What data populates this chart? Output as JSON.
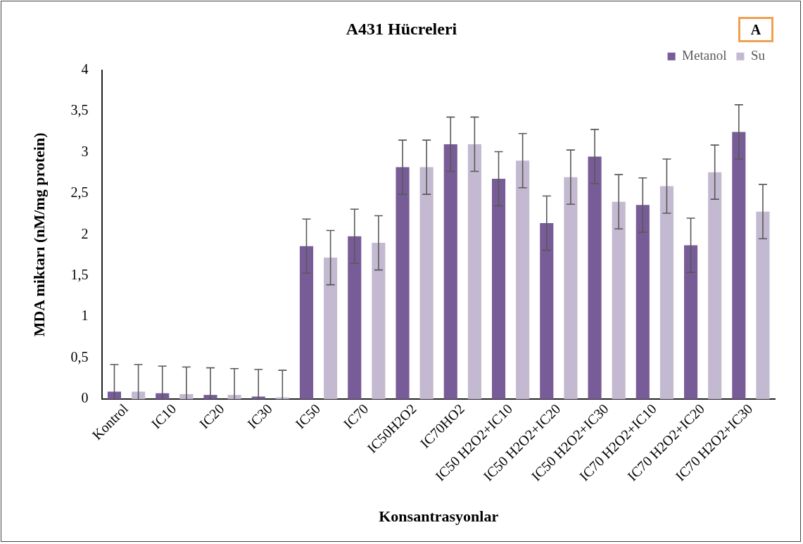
{
  "chart_data": {
    "type": "bar",
    "title": "A431 Hücreleri",
    "xlabel": "Konsantrasyonlar",
    "ylabel": "MDA miktarı (nM/mg protein)",
    "categories": [
      "Kontrol",
      "IC10",
      "IC20",
      "IC30",
      "IC50",
      "IC70",
      "IC50H2O2",
      "IC70HO2",
      "IC50 H2O2+IC10",
      "IC50 H2O2+IC20",
      "IC50 H2O2+IC30",
      "IC70 H2O2+IC10",
      "IC70 H2O2+IC20",
      "IC70 H2O2+IC30"
    ],
    "series": [
      {
        "name": "Metanol",
        "color": "#775c98",
        "values": [
          0.09,
          0.07,
          0.05,
          0.03,
          1.86,
          1.98,
          2.82,
          3.1,
          2.68,
          2.14,
          2.95,
          2.36,
          1.87,
          3.25
        ],
        "errors": [
          [
            0,
            0.42
          ],
          [
            0,
            0.4
          ],
          [
            0,
            0.38
          ],
          [
            0,
            0.36
          ],
          0.33,
          0.33,
          0.33,
          0.33,
          0.33,
          0.33,
          0.33,
          0.33,
          0.33,
          0.33
        ]
      },
      {
        "name": "Su",
        "color": "#c3b9d1",
        "values": [
          0.09,
          0.06,
          0.05,
          0.02,
          1.72,
          1.9,
          2.82,
          3.1,
          2.9,
          2.7,
          2.4,
          2.59,
          2.76,
          2.28
        ],
        "errors": [
          [
            0,
            0.42
          ],
          [
            0,
            0.39
          ],
          [
            0,
            0.37
          ],
          [
            0,
            0.35
          ],
          0.33,
          0.33,
          0.33,
          0.33,
          0.33,
          0.33,
          0.33,
          0.33,
          0.33,
          0.33
        ]
      }
    ],
    "ylim": [
      0,
      4
    ],
    "yticks": [
      0,
      {
        "value": 0.5,
        "label": "0,5"
      },
      1,
      {
        "value": 1.5,
        "label": "1,5"
      },
      2,
      {
        "value": 2.5,
        "label": "2,5"
      },
      3,
      {
        "value": 3.5,
        "label": "3,5"
      },
      4
    ],
    "grid": false,
    "legend": "top right",
    "annotations": [
      "A"
    ]
  }
}
